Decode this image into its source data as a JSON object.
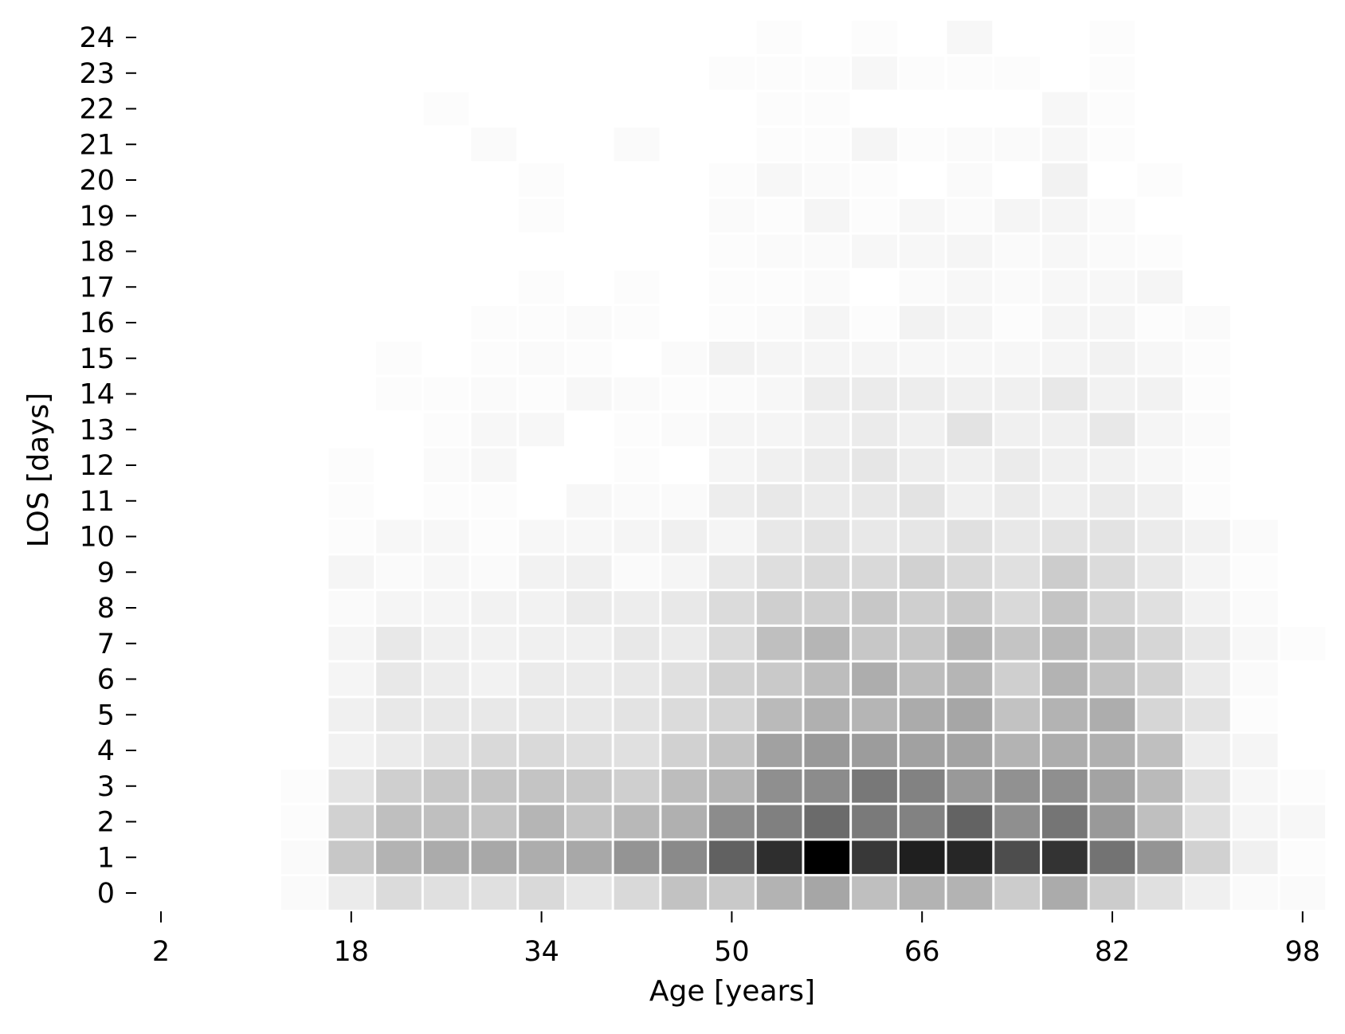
{
  "chart_data": {
    "type": "heatmap",
    "xlabel": "Age [years]",
    "ylabel": "LOS [days]",
    "x_tick_labels": [
      "2",
      "18",
      "34",
      "50",
      "66",
      "82",
      "98"
    ],
    "x_tick_values": [
      2,
      18,
      34,
      50,
      66,
      82,
      98
    ],
    "y_tick_labels": [
      "0",
      "1",
      "2",
      "3",
      "4",
      "5",
      "6",
      "7",
      "8",
      "9",
      "10",
      "11",
      "12",
      "13",
      "14",
      "15",
      "16",
      "17",
      "18",
      "19",
      "20",
      "21",
      "22",
      "23",
      "24"
    ],
    "age_bin_start": 12,
    "age_bin_width": 4,
    "los_values": [
      0,
      1,
      2,
      3,
      4,
      5,
      6,
      7,
      8,
      9,
      10,
      11,
      12,
      13,
      14,
      15,
      16,
      17,
      18,
      19,
      20,
      21,
      22,
      23,
      24
    ],
    "color_scale": "greys",
    "value_unit": "relative intensity (0-1)",
    "intensity": [
      [
        0.02,
        0.08,
        0.14,
        0.12,
        0.12,
        0.15,
        0.1,
        0.15,
        0.24,
        0.21,
        0.3,
        0.35,
        0.25,
        0.3,
        0.3,
        0.2,
        0.33,
        0.2,
        0.12,
        0.06,
        0.02,
        0.02
      ],
      [
        0.02,
        0.22,
        0.3,
        0.33,
        0.34,
        0.32,
        0.34,
        0.42,
        0.46,
        0.62,
        0.82,
        1.0,
        0.78,
        0.88,
        0.85,
        0.7,
        0.8,
        0.55,
        0.42,
        0.18,
        0.06,
        0.01
      ],
      [
        0.01,
        0.18,
        0.25,
        0.25,
        0.23,
        0.29,
        0.23,
        0.28,
        0.31,
        0.45,
        0.5,
        0.58,
        0.52,
        0.49,
        0.61,
        0.44,
        0.54,
        0.4,
        0.25,
        0.12,
        0.04,
        0.03
      ],
      [
        0.01,
        0.11,
        0.19,
        0.22,
        0.23,
        0.23,
        0.22,
        0.19,
        0.26,
        0.29,
        0.44,
        0.45,
        0.53,
        0.49,
        0.4,
        0.43,
        0.44,
        0.36,
        0.27,
        0.12,
        0.03,
        0.01
      ],
      [
        0.0,
        0.05,
        0.08,
        0.11,
        0.15,
        0.15,
        0.13,
        0.12,
        0.18,
        0.23,
        0.37,
        0.4,
        0.39,
        0.37,
        0.36,
        0.3,
        0.32,
        0.31,
        0.25,
        0.07,
        0.04,
        0.0
      ],
      [
        0.0,
        0.06,
        0.09,
        0.09,
        0.09,
        0.09,
        0.09,
        0.11,
        0.14,
        0.17,
        0.27,
        0.31,
        0.29,
        0.33,
        0.35,
        0.24,
        0.3,
        0.32,
        0.16,
        0.11,
        0.01,
        0.0
      ],
      [
        0.0,
        0.04,
        0.09,
        0.07,
        0.05,
        0.08,
        0.08,
        0.09,
        0.12,
        0.18,
        0.21,
        0.26,
        0.32,
        0.26,
        0.29,
        0.19,
        0.3,
        0.24,
        0.18,
        0.08,
        0.02,
        0.0
      ],
      [
        0.0,
        0.04,
        0.09,
        0.06,
        0.05,
        0.06,
        0.06,
        0.09,
        0.08,
        0.14,
        0.25,
        0.29,
        0.22,
        0.22,
        0.3,
        0.23,
        0.28,
        0.23,
        0.16,
        0.09,
        0.03,
        0.01
      ],
      [
        0.0,
        0.02,
        0.04,
        0.04,
        0.05,
        0.05,
        0.08,
        0.07,
        0.09,
        0.14,
        0.19,
        0.19,
        0.22,
        0.19,
        0.21,
        0.15,
        0.23,
        0.17,
        0.12,
        0.05,
        0.02,
        0.0
      ],
      [
        0.0,
        0.04,
        0.02,
        0.03,
        0.02,
        0.05,
        0.06,
        0.02,
        0.04,
        0.09,
        0.13,
        0.15,
        0.15,
        0.18,
        0.15,
        0.12,
        0.2,
        0.14,
        0.09,
        0.04,
        0.01,
        0.0
      ],
      [
        0.0,
        0.01,
        0.03,
        0.03,
        0.01,
        0.03,
        0.03,
        0.04,
        0.06,
        0.04,
        0.09,
        0.11,
        0.09,
        0.1,
        0.12,
        0.09,
        0.11,
        0.11,
        0.08,
        0.05,
        0.02,
        0.0
      ],
      [
        0.0,
        0.01,
        0.0,
        0.01,
        0.01,
        0.0,
        0.03,
        0.02,
        0.02,
        0.07,
        0.09,
        0.08,
        0.09,
        0.11,
        0.06,
        0.08,
        0.06,
        0.08,
        0.06,
        0.01,
        0.0,
        0.0
      ],
      [
        0.0,
        0.01,
        0.0,
        0.02,
        0.03,
        0.0,
        0.0,
        0.01,
        0.0,
        0.04,
        0.06,
        0.08,
        0.1,
        0.07,
        0.06,
        0.08,
        0.06,
        0.05,
        0.03,
        0.01,
        0.0,
        0.0
      ],
      [
        0.0,
        0.0,
        0.0,
        0.01,
        0.03,
        0.03,
        0.0,
        0.01,
        0.02,
        0.04,
        0.04,
        0.06,
        0.08,
        0.06,
        0.11,
        0.06,
        0.06,
        0.09,
        0.04,
        0.02,
        0.0,
        0.0
      ],
      [
        0.0,
        0.0,
        0.01,
        0.01,
        0.02,
        0.01,
        0.03,
        0.02,
        0.01,
        0.02,
        0.03,
        0.07,
        0.08,
        0.07,
        0.06,
        0.06,
        0.09,
        0.05,
        0.05,
        0.01,
        0.0,
        0.0
      ],
      [
        0.0,
        0.0,
        0.01,
        0.0,
        0.01,
        0.02,
        0.01,
        0.0,
        0.02,
        0.05,
        0.04,
        0.04,
        0.04,
        0.03,
        0.03,
        0.03,
        0.04,
        0.05,
        0.03,
        0.01,
        0.0,
        0.0
      ],
      [
        0.0,
        0.0,
        0.0,
        0.0,
        0.01,
        0.01,
        0.02,
        0.01,
        0.0,
        0.01,
        0.02,
        0.04,
        0.01,
        0.05,
        0.04,
        0.01,
        0.04,
        0.04,
        0.01,
        0.02,
        0.0,
        0.0
      ],
      [
        0.0,
        0.0,
        0.0,
        0.0,
        0.0,
        0.01,
        0.0,
        0.01,
        0.0,
        0.01,
        0.01,
        0.02,
        0.0,
        0.02,
        0.03,
        0.02,
        0.03,
        0.03,
        0.04,
        0.0,
        0.0,
        0.0
      ],
      [
        0.0,
        0.0,
        0.0,
        0.0,
        0.0,
        0.0,
        0.0,
        0.0,
        0.0,
        0.01,
        0.02,
        0.02,
        0.03,
        0.03,
        0.04,
        0.02,
        0.03,
        0.02,
        0.01,
        0.0,
        0.0,
        0.0
      ],
      [
        0.0,
        0.0,
        0.0,
        0.0,
        0.0,
        0.01,
        0.0,
        0.0,
        0.0,
        0.02,
        0.01,
        0.04,
        0.01,
        0.03,
        0.02,
        0.04,
        0.04,
        0.02,
        0.0,
        0.0,
        0.0,
        0.0
      ],
      [
        0.0,
        0.0,
        0.0,
        0.0,
        0.0,
        0.01,
        0.0,
        0.0,
        0.0,
        0.01,
        0.03,
        0.02,
        0.01,
        0.0,
        0.02,
        0.0,
        0.05,
        0.0,
        0.01,
        0.0,
        0.0,
        0.0
      ],
      [
        0.0,
        0.0,
        0.0,
        0.0,
        0.02,
        0.0,
        0.0,
        0.02,
        0.0,
        0.0,
        0.01,
        0.01,
        0.04,
        0.01,
        0.02,
        0.02,
        0.03,
        0.01,
        0.0,
        0.0,
        0.0,
        0.0
      ],
      [
        0.0,
        0.0,
        0.0,
        0.01,
        0.0,
        0.0,
        0.0,
        0.0,
        0.0,
        0.0,
        0.01,
        0.01,
        0.0,
        0.0,
        0.0,
        0.0,
        0.03,
        0.01,
        0.0,
        0.0,
        0.0,
        0.0
      ],
      [
        0.0,
        0.0,
        0.0,
        0.0,
        0.0,
        0.0,
        0.0,
        0.0,
        0.0,
        0.01,
        0.01,
        0.01,
        0.03,
        0.01,
        0.01,
        0.01,
        0.0,
        0.01,
        0.0,
        0.0,
        0.0,
        0.0
      ],
      [
        0.0,
        0.0,
        0.0,
        0.0,
        0.0,
        0.0,
        0.0,
        0.0,
        0.0,
        0.0,
        0.01,
        0.0,
        0.01,
        0.0,
        0.03,
        0.0,
        0.0,
        0.01,
        0.0,
        0.0,
        0.0,
        0.0
      ]
    ]
  }
}
